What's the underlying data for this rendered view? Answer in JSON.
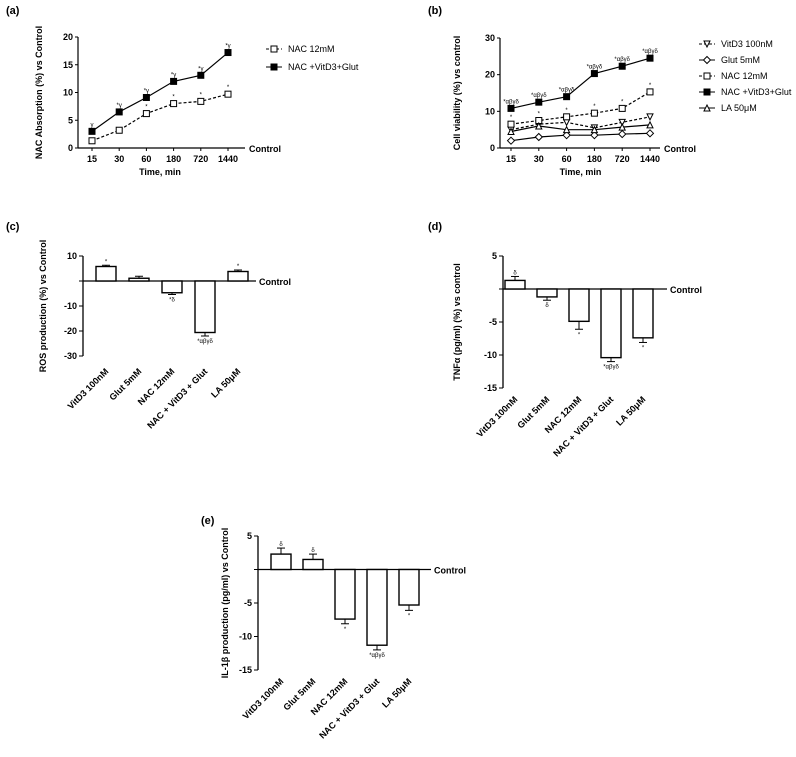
{
  "panels": {
    "a": {
      "label": "(a)"
    },
    "b": {
      "label": "(b)"
    },
    "c": {
      "label": "(c)"
    },
    "d": {
      "label": "(d)"
    },
    "e": {
      "label": "(e)"
    }
  },
  "chart_data": [
    {
      "id": "a",
      "type": "line",
      "xlabel": "Time, min",
      "ylabel": "NAC Absorption (%) vs Control",
      "categories": [
        "15",
        "30",
        "60",
        "180",
        "720",
        "1440"
      ],
      "ylim": [
        0,
        20
      ],
      "yticks": [
        "0",
        "5",
        "10",
        "15",
        "20"
      ],
      "baseline_label": "Control",
      "series": [
        {
          "name": "NAC 12mM",
          "marker": "open-square",
          "dash": true,
          "values": [
            1.3,
            3.2,
            6.2,
            8.0,
            8.4,
            9.7
          ],
          "sig": [
            "",
            "",
            "*",
            "*",
            "*",
            "*"
          ]
        },
        {
          "name": "NAC +VitD3+Glut",
          "marker": "filled-square",
          "dash": false,
          "values": [
            3.0,
            6.5,
            9.1,
            12.0,
            13.1,
            17.2
          ],
          "sig": [
            "γ",
            "*γ",
            "*γ",
            "*γ",
            "*γ",
            "*γ"
          ]
        }
      ]
    },
    {
      "id": "b",
      "type": "line",
      "xlabel": "Time, min",
      "ylabel": "Cell viability (%) vs control",
      "categories": [
        "15",
        "30",
        "60",
        "180",
        "720",
        "1440"
      ],
      "ylim": [
        0,
        30
      ],
      "yticks": [
        "0",
        "10",
        "20",
        "30"
      ],
      "baseline_label": "Control",
      "series": [
        {
          "name": "VitD3 100nM",
          "marker": "open-triangle-down",
          "dash": true,
          "values": [
            5.0,
            6.5,
            7.0,
            5.5,
            7.0,
            8.5
          ],
          "sig": [
            "",
            "",
            "",
            "",
            "",
            ""
          ]
        },
        {
          "name": "Glut 5mM",
          "marker": "open-diamond",
          "dash": false,
          "values": [
            2.0,
            3.0,
            3.5,
            3.5,
            3.8,
            4.0
          ],
          "sig": [
            "",
            "",
            "",
            "",
            "",
            ""
          ]
        },
        {
          "name": "NAC 12mM",
          "marker": "open-square",
          "dash": true,
          "values": [
            6.5,
            7.5,
            8.5,
            9.5,
            10.8,
            15.3
          ],
          "sig": [
            "*",
            "*",
            "*",
            "*",
            "*",
            "*"
          ]
        },
        {
          "name": "NAC +VitD3+Glut",
          "marker": "filled-square",
          "dash": false,
          "values": [
            10.8,
            12.5,
            14.0,
            20.3,
            22.3,
            24.5
          ],
          "sig": [
            "*αβγδ",
            "*αβγδ",
            "*αβγδ",
            "*αβγδ",
            "*αβγδ",
            "*αβγδ"
          ]
        },
        {
          "name": "LA 50μM",
          "marker": "open-triangle-up",
          "dash": false,
          "values": [
            4.5,
            6.0,
            5.0,
            5.0,
            5.7,
            6.3
          ],
          "sig": [
            "",
            "",
            "",
            "",
            "",
            ""
          ]
        }
      ]
    },
    {
      "id": "c",
      "type": "bar",
      "ylabel": "ROS production (%) vs Control",
      "categories": [
        "VitD3 100nM",
        "Glut 5mM",
        "NAC 12mM",
        "NAC + VitD3 + Glut",
        "LA 50μM"
      ],
      "values": [
        5.8,
        1.1,
        -4.7,
        -20.6,
        3.8
      ],
      "errors": [
        0.5,
        0.8,
        0.7,
        1.4,
        0.6
      ],
      "sig": [
        "*",
        "",
        "*δ",
        "*αβγδ",
        "*"
      ],
      "ylim": [
        -30,
        10
      ],
      "yticks": [
        "10",
        "",
        "-10",
        "-20",
        "-30"
      ],
      "baseline_label": "Control"
    },
    {
      "id": "d",
      "type": "bar",
      "ylabel": "TNFα (pg/ml) (%) vs control",
      "categories": [
        "VitD3 100nM",
        "Glut 5mM",
        "NAC 12mM",
        "NAC + VitD3 + Glut",
        "LA 50μM"
      ],
      "values": [
        1.3,
        -1.2,
        -4.9,
        -10.4,
        -7.4
      ],
      "errors": [
        0.6,
        0.5,
        1.2,
        0.6,
        0.7
      ],
      "sig": [
        "δ",
        "δ",
        "*",
        "*αβγδ",
        "*"
      ],
      "ylim": [
        -15,
        5
      ],
      "yticks": [
        "5",
        "",
        "-5",
        "-10",
        "-15"
      ],
      "baseline_label": "Control"
    },
    {
      "id": "e",
      "type": "bar",
      "ylabel": "IL-1β production (pg/ml) vs  Control",
      "categories": [
        "VitD3 100nM",
        "Glut 5mM",
        "NAC 12mM",
        "NAC + VitD3 + Glut",
        "LA 50μM"
      ],
      "values": [
        2.3,
        1.5,
        -7.4,
        -11.3,
        -5.3
      ],
      "errors": [
        0.9,
        0.8,
        0.7,
        0.7,
        0.8
      ],
      "sig": [
        "δ",
        "δ",
        "*",
        "*αβγδ",
        "*"
      ],
      "ylim": [
        -15,
        5
      ],
      "yticks": [
        "5",
        "",
        "-5",
        "-10",
        "-15"
      ],
      "baseline_label": "Control"
    }
  ]
}
